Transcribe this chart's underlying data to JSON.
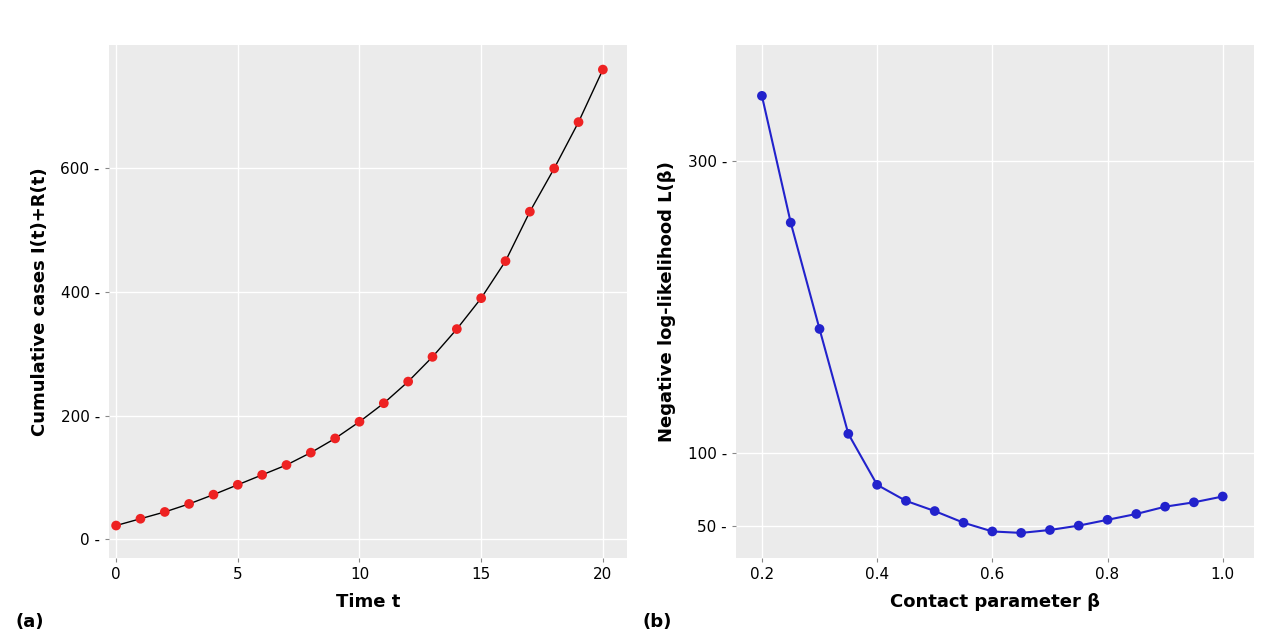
{
  "plot_a": {
    "xlabel": "Time t",
    "ylabel": "Cumulative cases I(t)+R(t)",
    "line_color": "#000000",
    "dot_color": "#EE2222",
    "dot_size": 7,
    "line_width": 1.0,
    "x_dots": [
      0,
      1,
      2,
      3,
      4,
      5,
      6,
      7,
      8,
      9,
      10,
      11,
      12,
      13,
      14,
      15,
      16,
      17,
      18,
      19,
      20
    ],
    "y_dots": [
      22,
      33,
      44,
      57,
      72,
      88,
      104,
      120,
      140,
      163,
      190,
      220,
      255,
      295,
      340,
      390,
      450,
      530,
      600,
      675,
      760
    ],
    "xlim": [
      -0.3,
      21.0
    ],
    "ylim": [
      -30,
      800
    ],
    "xticks": [
      0,
      5,
      10,
      15,
      20
    ],
    "yticks": [
      0,
      200,
      400,
      600
    ],
    "ytick_labels": [
      "0",
      "200",
      "400",
      "600"
    ],
    "xtick_labels": [
      "0",
      "5",
      "10",
      "15",
      "20"
    ],
    "background_color": "#EBEBEB",
    "grid_color": "#FFFFFF",
    "label": "(a)"
  },
  "plot_b": {
    "xlabel": "Contact parameter β",
    "ylabel": "Negative log-likelihood L(β)",
    "line_color": "#2222CC",
    "dot_color": "#2222CC",
    "dot_size": 7,
    "line_width": 1.5,
    "x_dots": [
      0.2,
      0.25,
      0.3,
      0.35,
      0.4,
      0.45,
      0.5,
      0.55,
      0.6,
      0.65,
      0.7,
      0.75,
      0.8,
      0.85,
      0.9,
      0.95,
      1.0
    ],
    "y_dots": [
      345,
      258,
      185,
      113,
      78,
      67,
      60,
      52,
      46,
      45,
      47,
      50,
      54,
      58,
      63,
      66,
      70
    ],
    "xlim": [
      0.155,
      1.055
    ],
    "ylim": [
      28,
      380
    ],
    "xticks": [
      0.2,
      0.4,
      0.6,
      0.8,
      1.0
    ],
    "yticks": [
      50,
      100,
      300
    ],
    "ytick_labels": [
      "50",
      "100",
      "300"
    ],
    "xtick_labels": [
      "0.2",
      "0.4",
      "0.6",
      "0.8",
      "1.0"
    ],
    "background_color": "#EBEBEB",
    "grid_color": "#FFFFFF",
    "label": "(b)"
  },
  "fig_background": "#FFFFFF",
  "tick_label_size": 11,
  "axis_label_size": 13,
  "panel_label_size": 13
}
